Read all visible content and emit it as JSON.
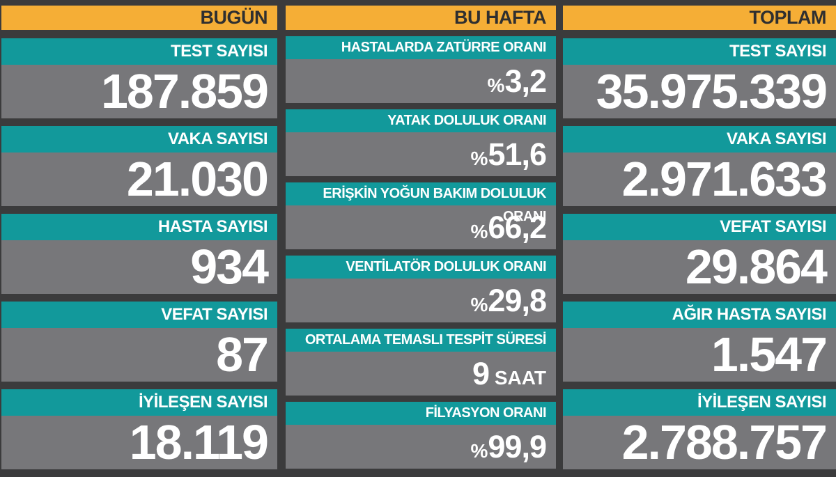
{
  "theme": {
    "background": "#3B3B3C",
    "header_bg": "#F5AE36",
    "header_text": "#2F2F30",
    "label_bg": "#12999B",
    "value_bg": "#77777A",
    "text_on_dark": "#FFFFFF"
  },
  "chart_data": {
    "type": "table",
    "groups": [
      {
        "header": "BUGÜN",
        "stats": [
          {
            "label": "TEST SAYISI",
            "value": "187.859"
          },
          {
            "label": "VAKA SAYISI",
            "value": "21.030"
          },
          {
            "label": "HASTA SAYISI",
            "value": "934"
          },
          {
            "label": "VEFAT SAYISI",
            "value": "87"
          },
          {
            "label": "İYİLEŞEN SAYISI",
            "value": "18.119"
          }
        ]
      },
      {
        "header": "BU HAFTA",
        "stats": [
          {
            "label": "HASTALARDA ZATÜRRE ORANI",
            "prefix": "%",
            "value": "3,2"
          },
          {
            "label": "YATAK DOLULUK ORANI",
            "prefix": "%",
            "value": "51,6"
          },
          {
            "label": "ERİŞKİN YOĞUN BAKIM DOLULUK ORANI",
            "prefix": "%",
            "value": "66,2"
          },
          {
            "label": "VENTİLATÖR DOLULUK ORANI",
            "prefix": "%",
            "value": "29,8"
          },
          {
            "label": "ORTALAMA TEMASLI TESPİT SÜRESİ",
            "value": "9",
            "suffix": " SAAT"
          },
          {
            "label": "FİLYASYON ORANI",
            "prefix": "%",
            "value": "99,9"
          }
        ]
      },
      {
        "header": "TOPLAM",
        "stats": [
          {
            "label": "TEST SAYISI",
            "value": "35.975.339"
          },
          {
            "label": "VAKA SAYISI",
            "value": "2.971.633"
          },
          {
            "label": "VEFAT SAYISI",
            "value": "29.864"
          },
          {
            "label": "AĞIR HASTA SAYISI",
            "value": "1.547"
          },
          {
            "label": "İYİLEŞEN SAYISI",
            "value": "2.788.757"
          }
        ]
      }
    ]
  }
}
